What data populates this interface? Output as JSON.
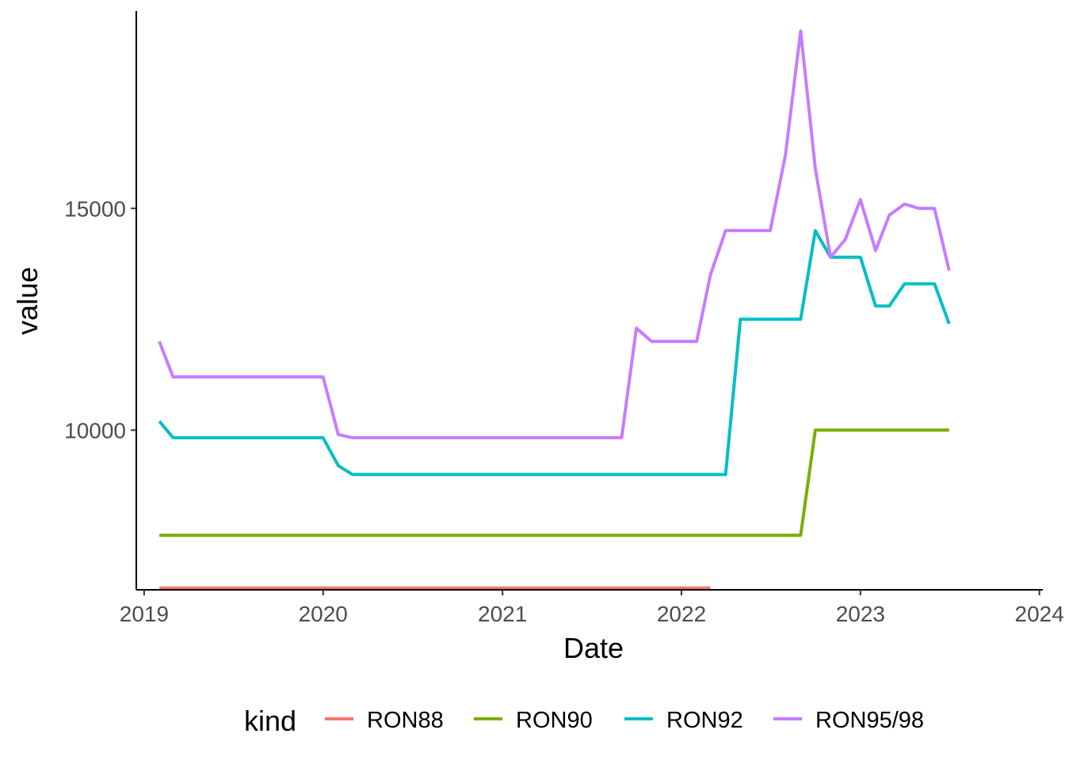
{
  "chart_data": {
    "type": "line",
    "xlabel": "Date",
    "ylabel": "value",
    "legend_title": "kind",
    "legend_position": "bottom",
    "grid": false,
    "xlim": [
      "2018-12-16",
      "2024-01-08"
    ],
    "ylim": [
      6400,
      19450
    ],
    "x_ticks": [
      "2019-01-01",
      "2020-01-01",
      "2021-01-01",
      "2022-01-01",
      "2023-01-01",
      "2024-01-01"
    ],
    "x_tick_labels": [
      "2019",
      "2020",
      "2021",
      "2022",
      "2023",
      "2024"
    ],
    "y_ticks": [
      10000,
      15000
    ],
    "y_tick_labels": [
      "10000",
      "15000"
    ],
    "series": [
      {
        "name": "RON88",
        "color": "#F8766D",
        "points": [
          [
            "2019-02-01",
            6440
          ],
          [
            "2022-03-01",
            6440
          ]
        ]
      },
      {
        "name": "RON90",
        "color": "#7CAE00",
        "points": [
          [
            "2019-02-01",
            7630
          ],
          [
            "2022-09-01",
            7630
          ],
          [
            "2022-10-01",
            10000
          ],
          [
            "2023-07-01",
            10000
          ]
        ]
      },
      {
        "name": "RON92",
        "color": "#00BFC4",
        "points": [
          [
            "2019-02-01",
            10200
          ],
          [
            "2019-03-01",
            9830
          ],
          [
            "2020-01-01",
            9830
          ],
          [
            "2020-02-01",
            9200
          ],
          [
            "2020-03-01",
            9000
          ],
          [
            "2022-04-01",
            9000
          ],
          [
            "2022-05-01",
            12500
          ],
          [
            "2022-09-01",
            12500
          ],
          [
            "2022-10-01",
            14500
          ],
          [
            "2022-11-01",
            13900
          ],
          [
            "2023-01-01",
            13900
          ],
          [
            "2023-02-01",
            12800
          ],
          [
            "2023-03-01",
            12800
          ],
          [
            "2023-04-01",
            13300
          ],
          [
            "2023-06-01",
            13300
          ],
          [
            "2023-07-01",
            12400
          ]
        ]
      },
      {
        "name": "RON95/98",
        "color": "#C77CFF",
        "points": [
          [
            "2019-02-01",
            12000
          ],
          [
            "2019-03-01",
            11200
          ],
          [
            "2020-01-01",
            11200
          ],
          [
            "2020-02-01",
            9900
          ],
          [
            "2020-03-01",
            9830
          ],
          [
            "2021-09-01",
            9830
          ],
          [
            "2021-10-01",
            12300
          ],
          [
            "2021-11-01",
            12000
          ],
          [
            "2022-02-01",
            12000
          ],
          [
            "2022-03-01",
            13500
          ],
          [
            "2022-04-01",
            14500
          ],
          [
            "2022-07-01",
            14500
          ],
          [
            "2022-08-01",
            16200
          ],
          [
            "2022-09-01",
            19000
          ],
          [
            "2022-10-01",
            15900
          ],
          [
            "2022-11-01",
            13900
          ],
          [
            "2022-12-01",
            14300
          ],
          [
            "2023-01-01",
            15200
          ],
          [
            "2023-02-01",
            14050
          ],
          [
            "2023-03-01",
            14850
          ],
          [
            "2023-04-01",
            15100
          ],
          [
            "2023-05-01",
            15000
          ],
          [
            "2023-06-01",
            15000
          ],
          [
            "2023-07-01",
            13600
          ]
        ]
      }
    ]
  }
}
